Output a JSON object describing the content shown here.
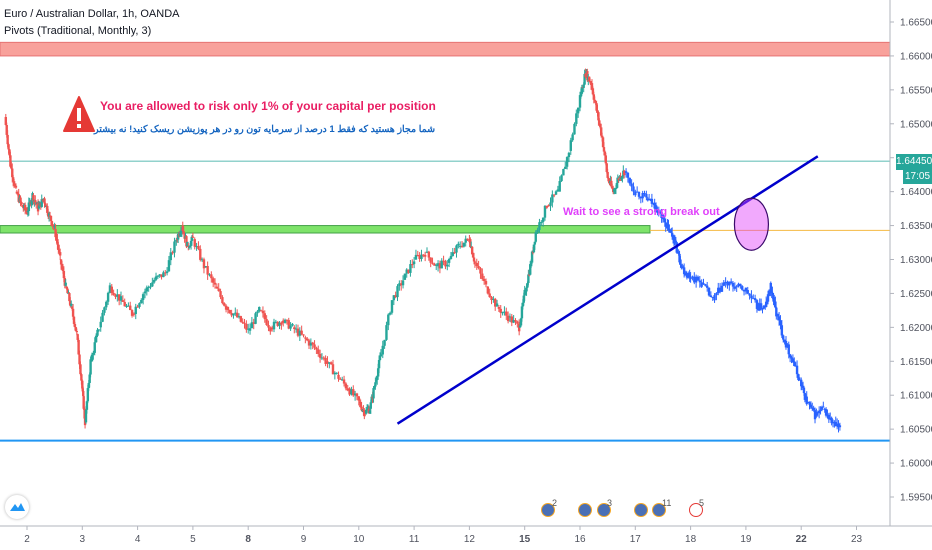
{
  "header": {
    "symbol_line": "Euro / Australian Dollar, 1h, OANDA",
    "indicator_line": "Pivots (Traditional, Monthly, 3)"
  },
  "annotations": {
    "warning_en": "You are allowed to risk only 1% of your capital per position",
    "warning_fa": "شما مجاز هستید که فقط 1 درصد از سرمایه تون رو در هر پوزیشن ریسک کنید! نه بیشتر",
    "callout": "Wait to see a strong break out"
  },
  "price_scale": {
    "last_price": "1.64450",
    "countdown": "17:05"
  },
  "events": [
    {
      "label": "2"
    },
    {
      "label": "3"
    },
    {
      "label": "11"
    },
    {
      "label": "5"
    }
  ],
  "colors": {
    "up_candle": "#26a69a",
    "down_candle": "#ef5350",
    "projection": "#2962ff",
    "trendline": "#0000cc",
    "resistance_zone": "#f8a19b",
    "support_zone": "#7ee36a",
    "highlight_circle": "#e040fb",
    "horizontal_line": "#2196f3"
  },
  "chart_data": {
    "type": "candlestick",
    "symbol": "Euro / Australian Dollar",
    "interval": "1h",
    "source": "OANDA",
    "x_ticks": [
      "2",
      "3",
      "4",
      "5",
      "8",
      "9",
      "10",
      "11",
      "12",
      "15",
      "16",
      "17",
      "18",
      "19",
      "22",
      "23"
    ],
    "y_ticks": [
      "1.66500",
      "1.66000",
      "1.65500",
      "1.65000",
      "1.64500",
      "1.64000",
      "1.63500",
      "1.63000",
      "1.62500",
      "1.62000",
      "1.61500",
      "1.61000",
      "1.60500",
      "1.60000",
      "1.59500"
    ],
    "ylim": [
      1.5925,
      1.6695
    ],
    "xlim": [
      1.5,
      23.5
    ],
    "series": [
      {
        "kind": "historical",
        "points": [
          [
            1.6,
            1.651
          ],
          [
            1.7,
            1.644
          ],
          [
            1.8,
            1.64
          ],
          [
            1.9,
            1.638
          ],
          [
            2.0,
            1.637
          ],
          [
            2.1,
            1.6395
          ],
          [
            2.2,
            1.6375
          ],
          [
            2.3,
            1.639
          ],
          [
            2.4,
            1.6365
          ],
          [
            2.5,
            1.6345
          ],
          [
            2.6,
            1.63
          ],
          [
            2.7,
            1.626
          ],
          [
            2.8,
            1.623
          ],
          [
            2.9,
            1.619
          ],
          [
            3.0,
            1.611
          ],
          [
            3.05,
            1.606
          ],
          [
            3.15,
            1.615
          ],
          [
            3.3,
            1.62
          ],
          [
            3.5,
            1.626
          ],
          [
            3.7,
            1.624
          ],
          [
            3.9,
            1.622
          ],
          [
            4.1,
            1.625
          ],
          [
            4.3,
            1.627
          ],
          [
            4.5,
            1.628
          ],
          [
            4.7,
            1.633
          ],
          [
            4.8,
            1.635
          ],
          [
            4.9,
            1.632
          ],
          [
            5.0,
            1.633
          ],
          [
            5.2,
            1.629
          ],
          [
            5.4,
            1.626
          ],
          [
            5.6,
            1.623
          ],
          [
            5.8,
            1.6215
          ],
          [
            6.0,
            1.6195
          ],
          [
            6.2,
            1.6225
          ],
          [
            6.4,
            1.62
          ],
          [
            6.6,
            1.621
          ],
          [
            6.8,
            1.62
          ],
          [
            7.0,
            1.6185
          ],
          [
            7.2,
            1.617
          ],
          [
            7.4,
            1.615
          ],
          [
            7.6,
            1.613
          ],
          [
            7.8,
            1.611
          ],
          [
            8.0,
            1.609
          ],
          [
            8.1,
            1.6075
          ],
          [
            8.2,
            1.608
          ],
          [
            8.3,
            1.612
          ],
          [
            8.4,
            1.616
          ],
          [
            8.6,
            1.624
          ],
          [
            8.8,
            1.627
          ],
          [
            9.0,
            1.63
          ],
          [
            9.2,
            1.631
          ],
          [
            9.4,
            1.629
          ],
          [
            9.6,
            1.6295
          ],
          [
            9.8,
            1.632
          ],
          [
            10.0,
            1.633
          ],
          [
            10.1,
            1.6295
          ],
          [
            10.3,
            1.626
          ],
          [
            10.5,
            1.623
          ],
          [
            10.7,
            1.6215
          ],
          [
            10.9,
            1.62
          ],
          [
            11.0,
            1.625
          ],
          [
            11.1,
            1.629
          ],
          [
            11.2,
            1.634
          ],
          [
            11.4,
            1.638
          ],
          [
            11.6,
            1.64
          ],
          [
            11.8,
            1.646
          ],
          [
            12.0,
            1.654
          ],
          [
            12.1,
            1.6575
          ],
          [
            12.2,
            1.656
          ],
          [
            12.3,
            1.652
          ],
          [
            12.4,
            1.648
          ],
          [
            12.5,
            1.642
          ],
          [
            12.6,
            1.64
          ],
          [
            12.7,
            1.642
          ],
          [
            12.8,
            1.643
          ]
        ]
      },
      {
        "kind": "projection",
        "points": [
          [
            12.8,
            1.643
          ],
          [
            13.0,
            1.64
          ],
          [
            13.2,
            1.639
          ],
          [
            13.35,
            1.638
          ],
          [
            13.5,
            1.636
          ],
          [
            13.6,
            1.6345
          ],
          [
            13.7,
            1.633
          ],
          [
            13.8,
            1.63
          ],
          [
            13.9,
            1.628
          ],
          [
            14.0,
            1.6275
          ],
          [
            14.2,
            1.6265
          ],
          [
            14.4,
            1.624
          ],
          [
            14.6,
            1.6265
          ],
          [
            14.8,
            1.626
          ],
          [
            15.0,
            1.6255
          ],
          [
            15.2,
            1.623
          ],
          [
            15.35,
            1.623
          ],
          [
            15.45,
            1.626
          ],
          [
            15.55,
            1.622
          ],
          [
            15.7,
            1.618
          ],
          [
            15.85,
            1.615
          ],
          [
            16.0,
            1.6115
          ],
          [
            16.1,
            1.609
          ],
          [
            16.25,
            1.607
          ],
          [
            16.4,
            1.608
          ],
          [
            16.55,
            1.606
          ],
          [
            16.7,
            1.605
          ]
        ]
      }
    ],
    "horizontal_levels": [
      {
        "label": "resistance_zone",
        "from": 1.66,
        "to": 1.662
      },
      {
        "label": "support_zone",
        "from": 1.6342,
        "to": 1.635
      },
      {
        "label": "pivot_line",
        "value": 1.6033
      },
      {
        "label": "last_price_line",
        "value": 1.6445
      },
      {
        "label": "thin_orange_line",
        "value": 1.6343
      }
    ],
    "trendline": {
      "from": [
        8.7,
        1.6058
      ],
      "to": [
        16.3,
        1.6452
      ]
    },
    "highlight": {
      "x": 15.1,
      "y": 1.6352
    }
  }
}
